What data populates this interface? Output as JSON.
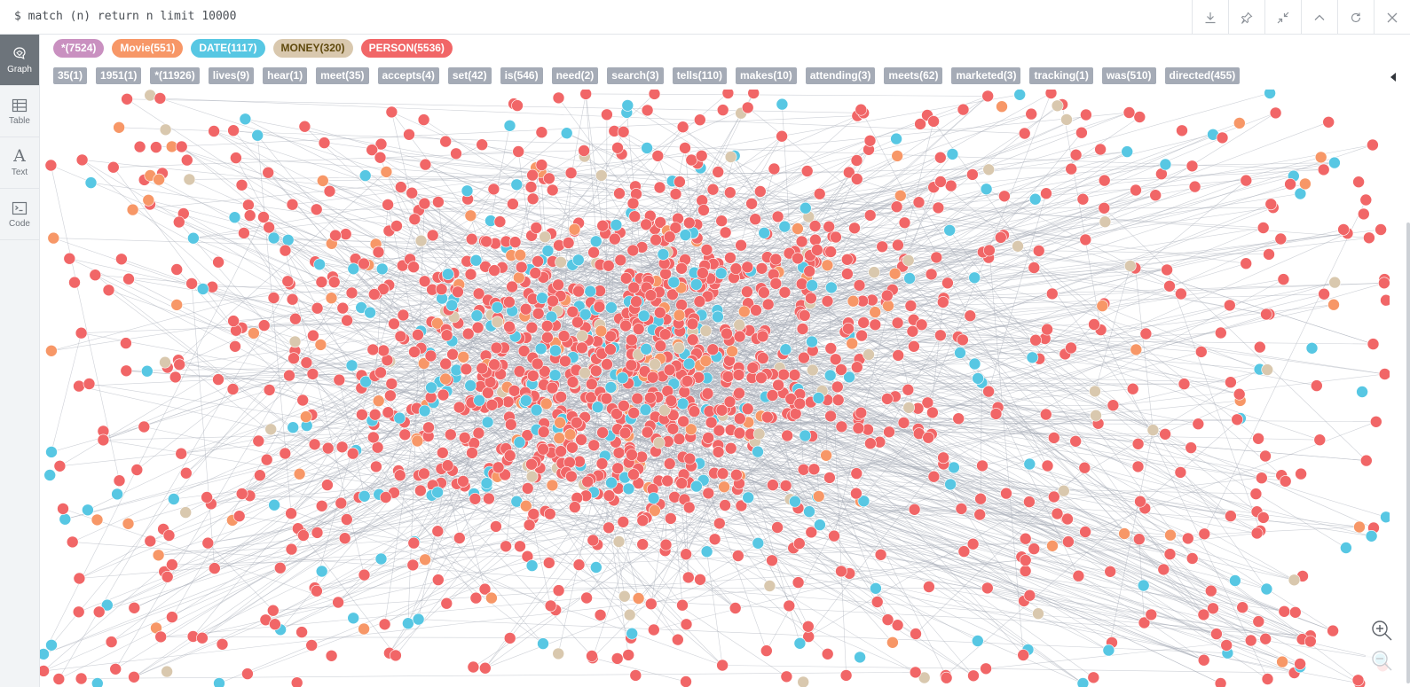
{
  "query": {
    "text": "$ match (n) return n limit 10000"
  },
  "actions": [
    {
      "name": "download-icon",
      "label": "Download"
    },
    {
      "name": "pin-icon",
      "label": "Pin"
    },
    {
      "name": "collapse-icon",
      "label": "Collapse"
    },
    {
      "name": "chevron-up-icon",
      "label": "Up"
    },
    {
      "name": "refresh-icon",
      "label": "Refresh"
    },
    {
      "name": "close-icon",
      "label": "Close"
    }
  ],
  "rail": [
    {
      "label": "Graph",
      "icon": "graph-icon",
      "active": true
    },
    {
      "label": "Table",
      "icon": "table-icon"
    },
    {
      "label": "Text",
      "icon": "text-icon"
    },
    {
      "label": "Code",
      "icon": "code-icon"
    }
  ],
  "labels": [
    {
      "text": "*(7524)",
      "color": "#c990c0"
    },
    {
      "text": "Movie(551)",
      "color": "#f79767"
    },
    {
      "text": "DATE(1117)",
      "color": "#57c7e3"
    },
    {
      "text": "MONEY(320)",
      "color": "#d9c8ae",
      "text_color": "#604a0e"
    },
    {
      "text": "PERSON(5536)",
      "color": "#f16667"
    }
  ],
  "relationships": [
    "35(1)",
    "1951(1)",
    "*(11926)",
    "lives(9)",
    "hear(1)",
    "meet(35)",
    "accepts(4)",
    "set(42)",
    "is(546)",
    "need(2)",
    "search(3)",
    "tells(110)",
    "makes(10)",
    "attending(3)",
    "meets(62)",
    "marketed(3)",
    "tracking(1)",
    "was(510)",
    "directed(455)"
  ],
  "graph": {
    "node_counts": {
      "person": 5536,
      "movie": 551,
      "date": 1117,
      "money": 320
    },
    "colors": {
      "person": "#f16667",
      "movie": "#f79767",
      "date": "#57c7e3",
      "money": "#d9c8ae",
      "edge": "#a5abb6"
    }
  },
  "zoom": {
    "in_label": "Zoom in",
    "out_label": "Zoom out"
  }
}
